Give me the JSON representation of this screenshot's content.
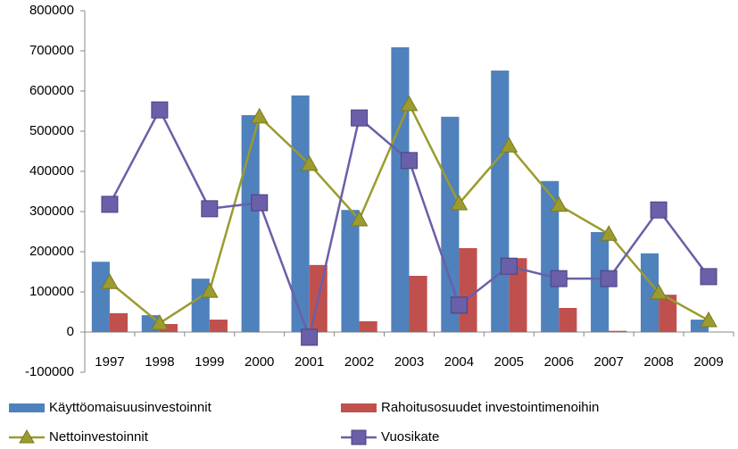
{
  "chart_data": {
    "type": "bar",
    "categories": [
      "1997",
      "1998",
      "1999",
      "2000",
      "2001",
      "2002",
      "2003",
      "2004",
      "2005",
      "2006",
      "2007",
      "2008",
      "2009"
    ],
    "ylim": [
      -100000,
      800000
    ],
    "yticks": [
      -100000,
      0,
      100000,
      200000,
      300000,
      400000,
      500000,
      600000,
      700000,
      800000
    ],
    "grid": false,
    "legend": "bottom",
    "series": [
      {
        "name": "Käyttöomaisuusinvestoinnit",
        "type": "bar",
        "color": "#4f81bd",
        "values": [
          175000,
          42000,
          133000,
          540000,
          589000,
          304000,
          709000,
          536000,
          651000,
          376000,
          249000,
          196000,
          31000
        ]
      },
      {
        "name": "Rahoitusosuudet investointimenoihin",
        "type": "bar",
        "color": "#c0504d",
        "values": [
          47000,
          20000,
          31000,
          0,
          167000,
          27000,
          140000,
          209000,
          184000,
          60000,
          3000,
          93000,
          0
        ]
      },
      {
        "name": "Nettoinvestoinnit",
        "type": "line",
        "marker": "triangle",
        "color": "#9b9b2f",
        "values": [
          124000,
          22000,
          102000,
          536000,
          418000,
          280000,
          567000,
          320000,
          464000,
          316000,
          244000,
          98000,
          29000
        ]
      },
      {
        "name": "Vuosikate",
        "type": "line",
        "marker": "square",
        "color": "#6a5fa8",
        "values": [
          318000,
          553000,
          307000,
          322000,
          -13000,
          533000,
          427000,
          67000,
          164000,
          133000,
          133000,
          304000,
          138000
        ]
      }
    ]
  }
}
